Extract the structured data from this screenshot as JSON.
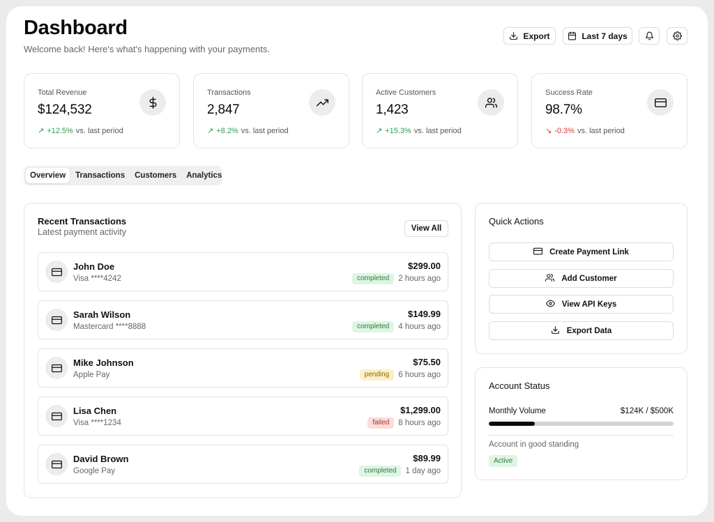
{
  "header": {
    "title": "Dashboard",
    "subtitle": "Welcome back! Here's what's happening with your payments.",
    "export_label": "Export",
    "date_range_label": "Last 7 days"
  },
  "stats": [
    {
      "label": "Total Revenue",
      "value": "$124,532",
      "change": "+12.5%",
      "suffix": "vs. last period",
      "trend": "up",
      "icon": "dollar-icon"
    },
    {
      "label": "Transactions",
      "value": "2,847",
      "change": "+8.2%",
      "suffix": "vs. last period",
      "trend": "up",
      "icon": "trending-up-icon"
    },
    {
      "label": "Active Customers",
      "value": "1,423",
      "change": "+15.3%",
      "suffix": "vs. last period",
      "trend": "up",
      "icon": "users-icon"
    },
    {
      "label": "Success Rate",
      "value": "98.7%",
      "change": "-0.3%",
      "suffix": "vs. last period",
      "trend": "down",
      "icon": "credit-card-icon"
    }
  ],
  "tabs": [
    "Overview",
    "Transactions",
    "Customers",
    "Analytics"
  ],
  "recent": {
    "title": "Recent Transactions",
    "subtitle": "Latest payment activity",
    "view_all_label": "View All",
    "items": [
      {
        "name": "John Doe",
        "method": "Visa ****4242",
        "amount": "$299.00",
        "status": "completed",
        "time": "2 hours ago"
      },
      {
        "name": "Sarah Wilson",
        "method": "Mastercard ****8888",
        "amount": "$149.99",
        "status": "completed",
        "time": "4 hours ago"
      },
      {
        "name": "Mike Johnson",
        "method": "Apple Pay",
        "amount": "$75.50",
        "status": "pending",
        "time": "6 hours ago"
      },
      {
        "name": "Lisa Chen",
        "method": "Visa ****1234",
        "amount": "$1,299.00",
        "status": "failed",
        "time": "8 hours ago"
      },
      {
        "name": "David Brown",
        "method": "Google Pay",
        "amount": "$89.99",
        "status": "completed",
        "time": "1 day ago"
      }
    ]
  },
  "quick_actions": {
    "title": "Quick Actions",
    "items": [
      {
        "label": "Create Payment Link",
        "icon": "credit-card-icon"
      },
      {
        "label": "Add Customer",
        "icon": "users-icon"
      },
      {
        "label": "View API Keys",
        "icon": "eye-icon"
      },
      {
        "label": "Export Data",
        "icon": "download-icon"
      }
    ]
  },
  "account": {
    "title": "Account Status",
    "volume_label": "Monthly Volume",
    "volume_value": "$124K / $500K",
    "volume_fraction": 0.25,
    "standing_text": "Account in good standing",
    "status_badge": "Active"
  },
  "colors": {
    "positive": "#2e9e4a",
    "negative": "#d33a2c",
    "completed_bg": "#dff5e3",
    "pending_bg": "#fbf0c6",
    "failed_bg": "#fbdcdc"
  }
}
